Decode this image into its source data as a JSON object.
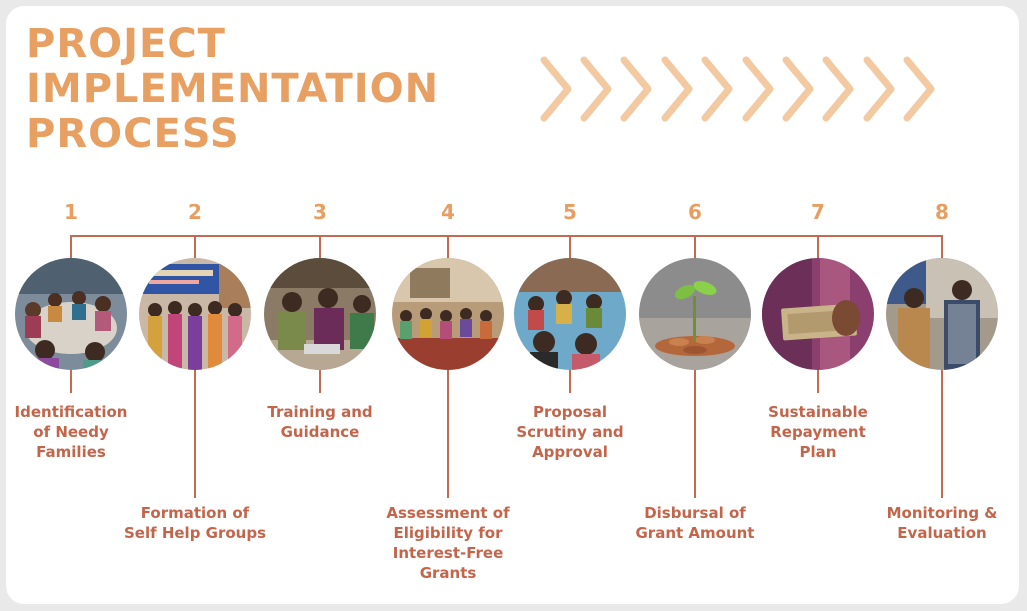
{
  "title_lines": [
    "PROJECT",
    "IMPLEMENTATION",
    "PROCESS"
  ],
  "colors": {
    "title": "#e8a062",
    "number": "#e79e60",
    "line": "#c46a52",
    "label": "#c2654b",
    "chevron": "#f3c9a2"
  },
  "steps": [
    {
      "number": "1",
      "label_lines": [
        "Identification",
        "of Needy",
        "Families"
      ],
      "photo": "women-circle-meeting-photo"
    },
    {
      "number": "2",
      "label_lines": [
        "Formation of",
        "Self Help Groups"
      ],
      "photo": "women-group-with-banner-photo"
    },
    {
      "number": "3",
      "label_lines": [
        "Training and",
        "Guidance"
      ],
      "photo": "women-seated-training-photo"
    },
    {
      "number": "4",
      "label_lines": [
        "Assessment of",
        "Eligibility for",
        "Interest-Free",
        "Grants"
      ],
      "photo": "village-group-sitting-photo"
    },
    {
      "number": "5",
      "label_lines": [
        "Proposal",
        "Scrutiny and",
        "Approval"
      ],
      "photo": "group-discussion-photo"
    },
    {
      "number": "6",
      "label_lines": [
        "Disbursal of",
        "Grant Amount"
      ],
      "photo": "plant-on-coins-photo"
    },
    {
      "number": "7",
      "label_lines": [
        "Sustainable",
        "Repayment",
        "Plan"
      ],
      "photo": "banknote-in-hand-photo"
    },
    {
      "number": "8",
      "label_lines": [
        "Monitoring &",
        "Evaluation"
      ],
      "photo": "two-people-standing-photo"
    }
  ]
}
